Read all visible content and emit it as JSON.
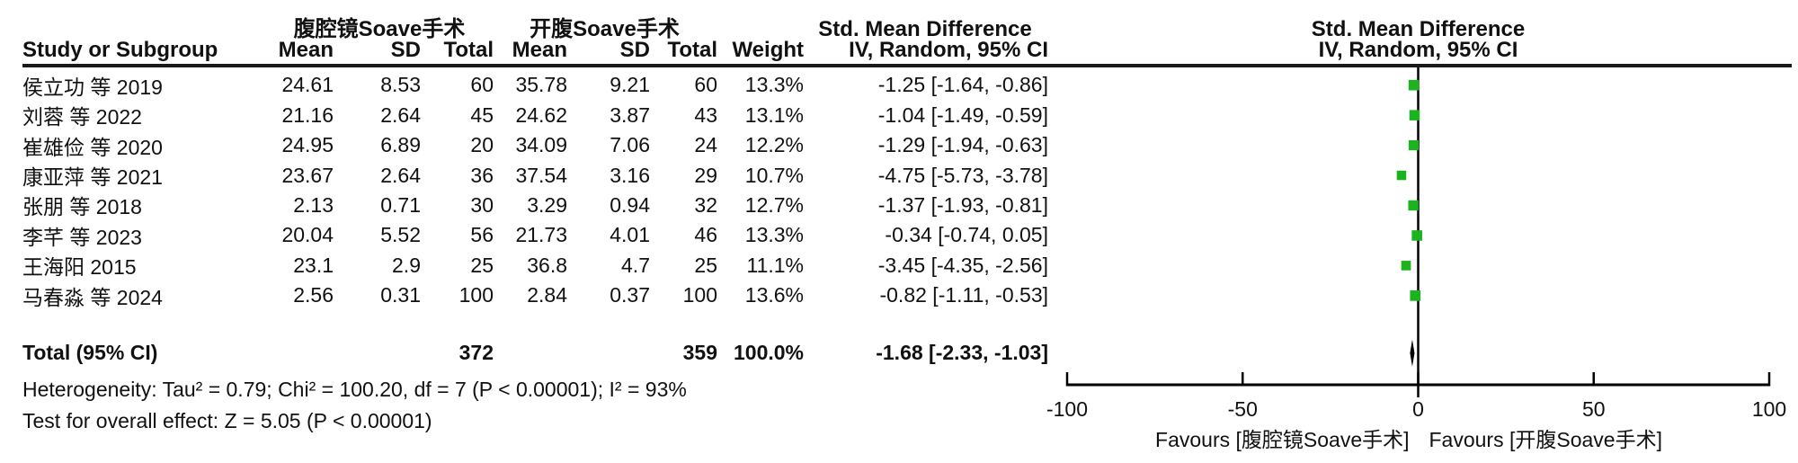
{
  "header": {
    "group1": "腹腔镜Soave手术",
    "group2": "开腹Soave手术",
    "smd_left": "Std. Mean Difference",
    "smd_right": "Std. Mean Difference",
    "study_col": "Study or Subgroup",
    "mean_col": "Mean",
    "sd_col": "SD",
    "total_col": "Total",
    "weight_col": "Weight",
    "method_left": "IV, Random, 95% CI",
    "method_right": "IV, Random, 95% CI"
  },
  "chart_data": {
    "type": "forest",
    "effect_measure": "Std. Mean Difference",
    "model": "IV, Random, 95% CI",
    "square_color": "#1bb41e",
    "line_color": "#000000",
    "studies": [
      {
        "name": "侯立功 等 2019",
        "mean1": "24.61",
        "sd1": "8.53",
        "total1": "60",
        "mean2": "35.78",
        "sd2": "9.21",
        "total2": "60",
        "weight": "13.3%",
        "weight_num": 13.3,
        "ci_text": "-1.25 [-1.64, -0.86]",
        "est": -1.25,
        "lo": -1.64,
        "hi": -0.86
      },
      {
        "name": "刘蓉 等 2022",
        "mean1": "21.16",
        "sd1": "2.64",
        "total1": "45",
        "mean2": "24.62",
        "sd2": "3.87",
        "total2": "43",
        "weight": "13.1%",
        "weight_num": 13.1,
        "ci_text": "-1.04 [-1.49, -0.59]",
        "est": -1.04,
        "lo": -1.49,
        "hi": -0.59
      },
      {
        "name": "崔雄俭 等 2020",
        "mean1": "24.95",
        "sd1": "6.89",
        "total1": "20",
        "mean2": "34.09",
        "sd2": "7.06",
        "total2": "24",
        "weight": "12.2%",
        "weight_num": 12.2,
        "ci_text": "-1.29 [-1.94, -0.63]",
        "est": -1.29,
        "lo": -1.94,
        "hi": -0.63
      },
      {
        "name": "康亚萍 等 2021",
        "mean1": "23.67",
        "sd1": "2.64",
        "total1": "36",
        "mean2": "37.54",
        "sd2": "3.16",
        "total2": "29",
        "weight": "10.7%",
        "weight_num": 10.7,
        "ci_text": "-4.75 [-5.73, -3.78]",
        "est": -4.75,
        "lo": -5.73,
        "hi": -3.78
      },
      {
        "name": "张朋 等 2018",
        "mean1": "2.13",
        "sd1": "0.71",
        "total1": "30",
        "mean2": "3.29",
        "sd2": "0.94",
        "total2": "32",
        "weight": "12.7%",
        "weight_num": 12.7,
        "ci_text": "-1.37 [-1.93, -0.81]",
        "est": -1.37,
        "lo": -1.93,
        "hi": -0.81
      },
      {
        "name": "李芊 等 2023",
        "mean1": "20.04",
        "sd1": "5.52",
        "total1": "56",
        "mean2": "21.73",
        "sd2": "4.01",
        "total2": "46",
        "weight": "13.3%",
        "weight_num": 13.3,
        "ci_text": "-0.34 [-0.74, 0.05]",
        "est": -0.34,
        "lo": -0.74,
        "hi": 0.05
      },
      {
        "name": "王海阳 2015",
        "mean1": "23.1",
        "sd1": "2.9",
        "total1": "25",
        "mean2": "36.8",
        "sd2": "4.7",
        "total2": "25",
        "weight": "11.1%",
        "weight_num": 11.1,
        "ci_text": "-3.45 [-4.35, -2.56]",
        "est": -3.45,
        "lo": -4.35,
        "hi": -2.56
      },
      {
        "name": "马春淼 等 2024",
        "mean1": "2.56",
        "sd1": "0.31",
        "total1": "100",
        "mean2": "2.84",
        "sd2": "0.37",
        "total2": "100",
        "weight": "13.6%",
        "weight_num": 13.6,
        "ci_text": "-0.82 [-1.11, -0.53]",
        "est": -0.82,
        "lo": -1.11,
        "hi": -0.53
      }
    ],
    "total": {
      "label": "Total (95% CI)",
      "total1": "372",
      "total2": "359",
      "weight": "100.0%",
      "ci_text": "-1.68 [-2.33, -1.03]",
      "est": -1.68,
      "lo": -2.33,
      "hi": -1.03
    },
    "axis": {
      "min": -100,
      "max": 100,
      "ticks": [
        "-100",
        "-50",
        "0",
        "50",
        "100"
      ],
      "tick_values": [
        -100,
        -50,
        0,
        50,
        100
      ],
      "favours_left": "Favours [腹腔镜Soave手术]",
      "favours_right": "Favours [开腹Soave手术]"
    },
    "footnotes": {
      "heterogeneity": "Heterogeneity: Tau² = 0.79; Chi² = 100.20, df = 7 (P < 0.00001); I² = 93%",
      "overall_effect": "Test for overall effect: Z = 5.05 (P < 0.00001)"
    }
  }
}
